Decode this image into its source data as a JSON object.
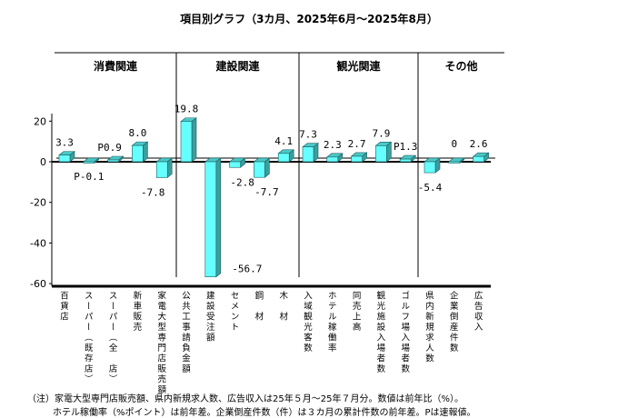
{
  "chart_data": {
    "type": "bar",
    "title": "項目別グラフ（3カ月、2025年6月～2025年8月）",
    "groups": [
      "消費関連",
      "建設関連",
      "観光関連",
      "その他"
    ],
    "categories": [
      "百貨店",
      "スーパー（既存店）",
      "スーパー（全　店）",
      "新車販売",
      "家電大型専門店販売額",
      "公共工事請負金額",
      "建設受注額",
      "セメント",
      "鋼　材",
      "木　材",
      "入域観光客数",
      "ホテル稼働率",
      "同売上高",
      "観光施設入場者数",
      "ゴルフ場入場者数",
      "県内新規求人数",
      "企業倒産件数",
      "広告収入"
    ],
    "category_group": [
      0,
      0,
      0,
      0,
      0,
      1,
      1,
      1,
      1,
      1,
      2,
      2,
      2,
      2,
      2,
      3,
      3,
      3
    ],
    "values": [
      3.3,
      -0.1,
      0.9,
      8.0,
      -7.8,
      19.8,
      -56.7,
      -2.8,
      -7.7,
      4.1,
      7.3,
      2.3,
      2.7,
      7.9,
      1.3,
      -5.4,
      0,
      2.6
    ],
    "data_labels": [
      "3.3",
      "P-0.1",
      "P0.9",
      "8.0",
      "-7.8",
      "19.8",
      "-56.7",
      "-2.8",
      "-7.7",
      "4.1",
      "7.3",
      "2.3",
      "2.7",
      "7.9",
      "P1.3",
      "-5.4",
      "0",
      "2.6"
    ],
    "yticks": [
      "20",
      "0",
      "-20",
      "-40",
      "-60"
    ],
    "ytick_values": [
      20,
      0,
      -20,
      -40,
      -60
    ],
    "ylim": [
      -60,
      20
    ],
    "xlabel": "",
    "ylabel": "",
    "colors": {
      "front": "#66ffff",
      "side": "#3a9e9e",
      "top": "#4cc8c8"
    }
  },
  "notes": [
    "（注）家電大型専門店販売額、県内新規求人数、広告収入は25年５月～25年７月分。数値は前年比（%）。",
    "ホテル稼働率（%ポイント）は前年差。企業倒産件数（件）は３カ月の累計件数の前年差。Pは速報値。"
  ]
}
